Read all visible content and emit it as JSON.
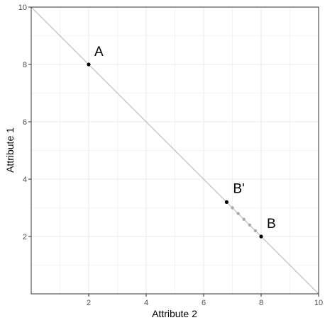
{
  "chart_data": {
    "type": "scatter",
    "xlabel": "Attribute 2",
    "ylabel": "Attribute 1",
    "xlim": [
      0,
      10
    ],
    "ylim": [
      0,
      10
    ],
    "x_ticks": [
      2,
      4,
      6,
      8,
      10
    ],
    "y_ticks": [
      2,
      4,
      6,
      8,
      10
    ],
    "x_tick_labels": [
      "2",
      "4",
      "6",
      "8",
      "10"
    ],
    "y_tick_labels": [
      "2",
      "4",
      "6",
      "8",
      "10"
    ],
    "grid": true,
    "reference_line": {
      "from": [
        0,
        10
      ],
      "to": [
        10,
        0
      ],
      "color": "#b3b3b3"
    },
    "points": [
      {
        "label": "A",
        "x": 2,
        "y": 8
      },
      {
        "label": "B'",
        "x": 6.8,
        "y": 3.2
      },
      {
        "label": "B",
        "x": 8,
        "y": 2
      }
    ],
    "intermediate_points": [
      {
        "x": 7.0,
        "y": 3.0
      },
      {
        "x": 7.2,
        "y": 2.8
      },
      {
        "x": 7.4,
        "y": 2.6
      },
      {
        "x": 7.6,
        "y": 2.4
      },
      {
        "x": 7.8,
        "y": 2.2
      }
    ],
    "colors": {
      "points": "#000000",
      "intermediate": "#aaaaaa",
      "grid": "#ebebeb",
      "border": "#333333"
    }
  }
}
